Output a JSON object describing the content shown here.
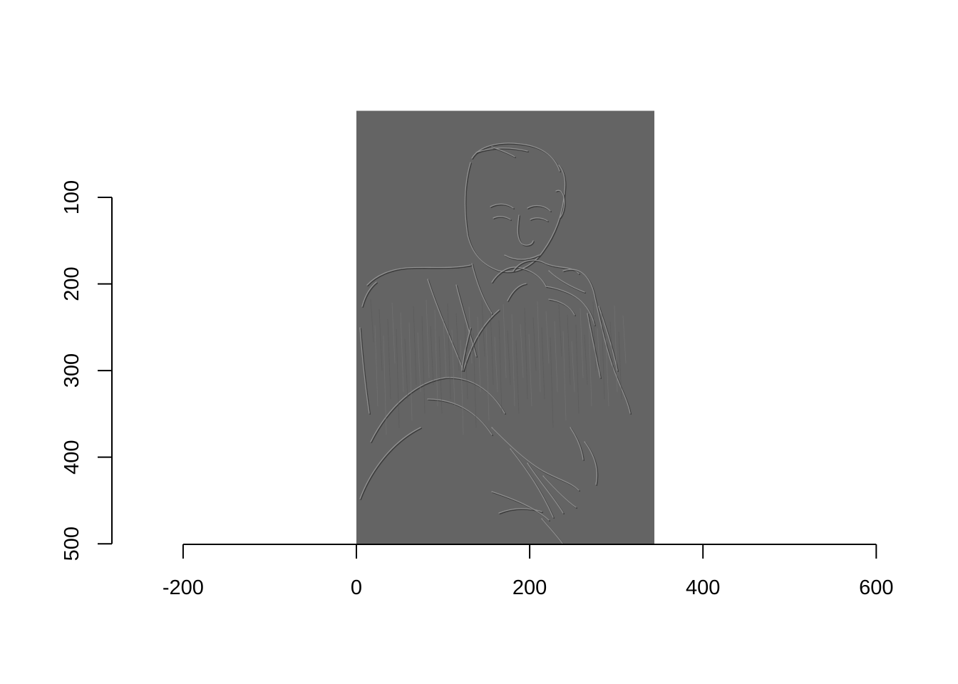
{
  "chart_data": {
    "type": "image",
    "title": "",
    "xlabel": "",
    "ylabel": "",
    "xlim": [
      -200,
      600
    ],
    "ylim": [
      500,
      100
    ],
    "x_ticks": [
      "-200",
      "0",
      "200",
      "400",
      "600"
    ],
    "y_ticks": [
      "100",
      "200",
      "300",
      "400",
      "500"
    ],
    "y_axis_reversed": true,
    "image": {
      "x_range": [
        0,
        344
      ],
      "y_range": [
        0,
        500
      ],
      "fill_color": "#646464",
      "subject": "embossed edge-filtered grayscale portrait"
    },
    "colors": {
      "axis": "#000000",
      "background": "#ffffff"
    }
  }
}
